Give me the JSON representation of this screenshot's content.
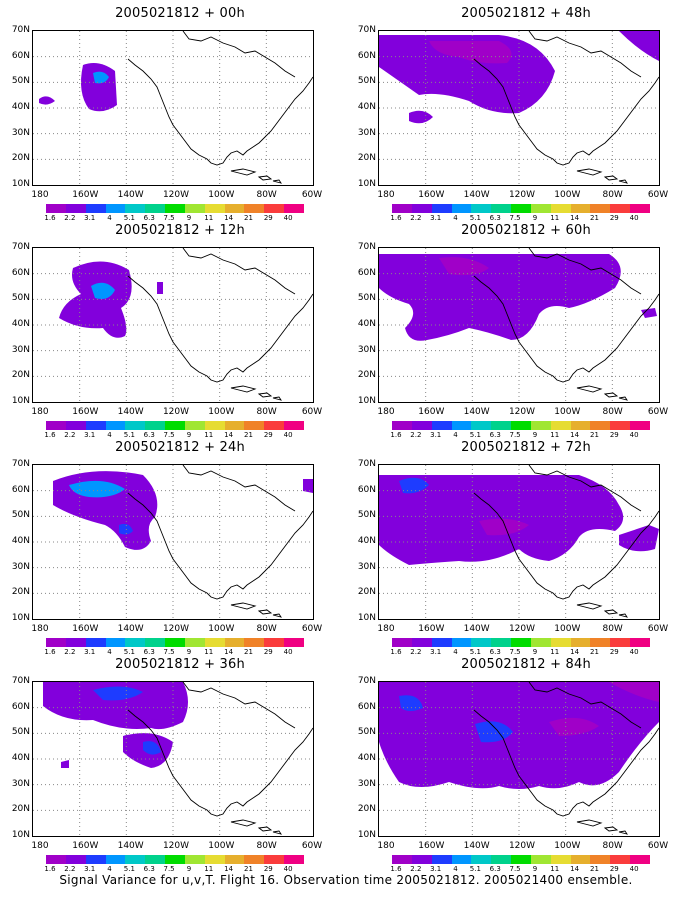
{
  "panels": [
    {
      "title": "2005021812 + 00h"
    },
    {
      "title": "2005021812 + 48h"
    },
    {
      "title": "2005021812 + 12h"
    },
    {
      "title": "2005021812 + 60h"
    },
    {
      "title": "2005021812 + 24h"
    },
    {
      "title": "2005021812 + 72h"
    },
    {
      "title": "2005021812 + 36h"
    },
    {
      "title": "2005021812 + 84h"
    }
  ],
  "axes": {
    "y_labels": [
      "70N",
      "60N",
      "50N",
      "40N",
      "30N",
      "20N",
      "10N"
    ],
    "x_labels": [
      "180",
      "160W",
      "140W",
      "120W",
      "100W",
      "80W",
      "60W"
    ]
  },
  "colorbar": {
    "labels": [
      "1.6",
      "2.2",
      "3.1",
      "4",
      "5.1",
      "6.3",
      "7.5",
      "9",
      "11",
      "14",
      "21",
      "29",
      "40"
    ],
    "colors": [
      "#a000c8",
      "#8200dc",
      "#1e3cff",
      "#0096ff",
      "#00c8c8",
      "#00d28c",
      "#00dc00",
      "#a0e632",
      "#e6dc32",
      "#e6af2d",
      "#f08228",
      "#fa3c3c",
      "#f00082"
    ]
  },
  "footer": "Signal Variance for u,v,T. Flight 16. Observation time 2005021812. 2005021400 ensemble."
}
